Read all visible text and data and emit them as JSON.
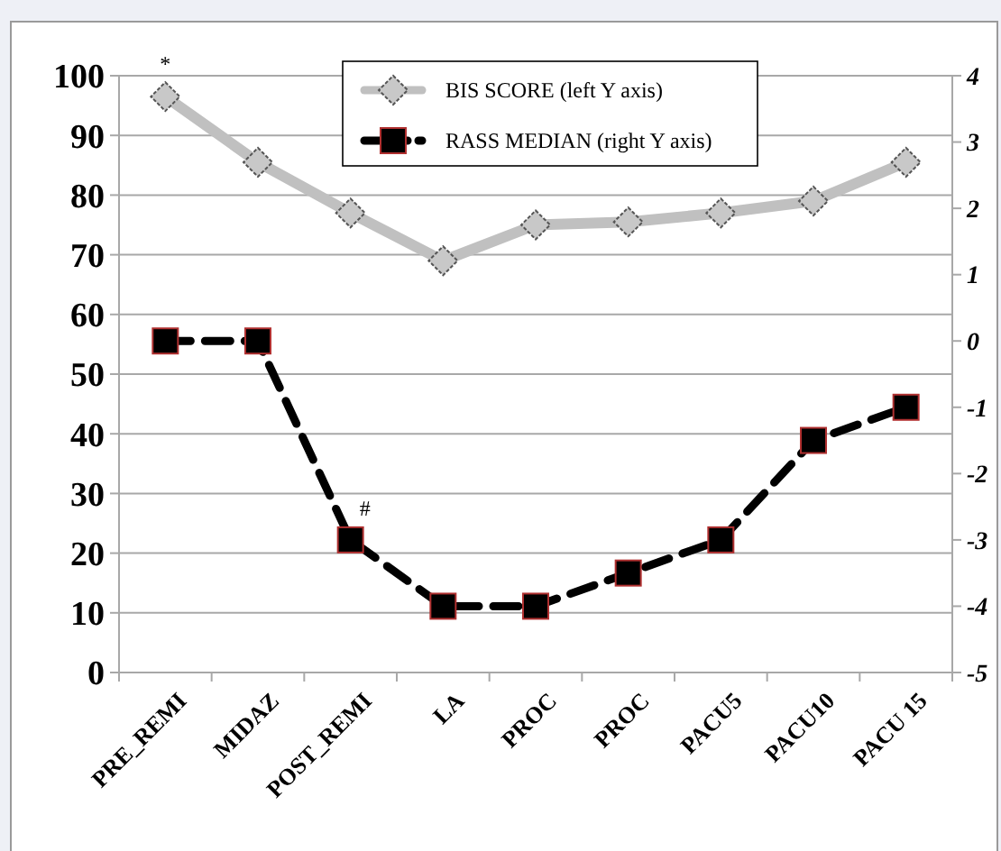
{
  "chart_data": {
    "type": "line",
    "categories": [
      "PRE_REMI",
      "MIDAZ",
      "POST_REMI",
      "LA",
      "PROC",
      "PROC",
      "PACU5",
      "PACU10",
      "PACU 15"
    ],
    "series": [
      {
        "name": "BIS SCORE (left Y axis)",
        "color": "#c0c0c0",
        "marker": "diamond",
        "line_style": "solid",
        "values": [
          96.5,
          85.5,
          77,
          69,
          75,
          75.5,
          77,
          79,
          85.5
        ]
      },
      {
        "name": "RASS MEDIAN (right Y axis)",
        "color": "#000000",
        "marker": "square",
        "line_style": "dashed",
        "axis": "y2",
        "values": [
          0,
          0,
          -3,
          -4,
          -4,
          -3.5,
          -3,
          -1.5,
          -1
        ]
      }
    ],
    "ylim": [
      0,
      100
    ],
    "yticks": [
      0,
      10,
      20,
      30,
      40,
      50,
      60,
      70,
      80,
      90,
      100
    ],
    "y2lim": [
      -5,
      4
    ],
    "y2ticks": [
      -5,
      -4,
      -3,
      -2,
      -1,
      0,
      1,
      2,
      3,
      4
    ],
    "grid": "y",
    "legend": "top",
    "annotations": [
      {
        "text": "*",
        "x": "PRE_REMI",
        "y": 96.5
      },
      {
        "text": "#",
        "x": "POST_REMI",
        "y": 22
      }
    ]
  }
}
